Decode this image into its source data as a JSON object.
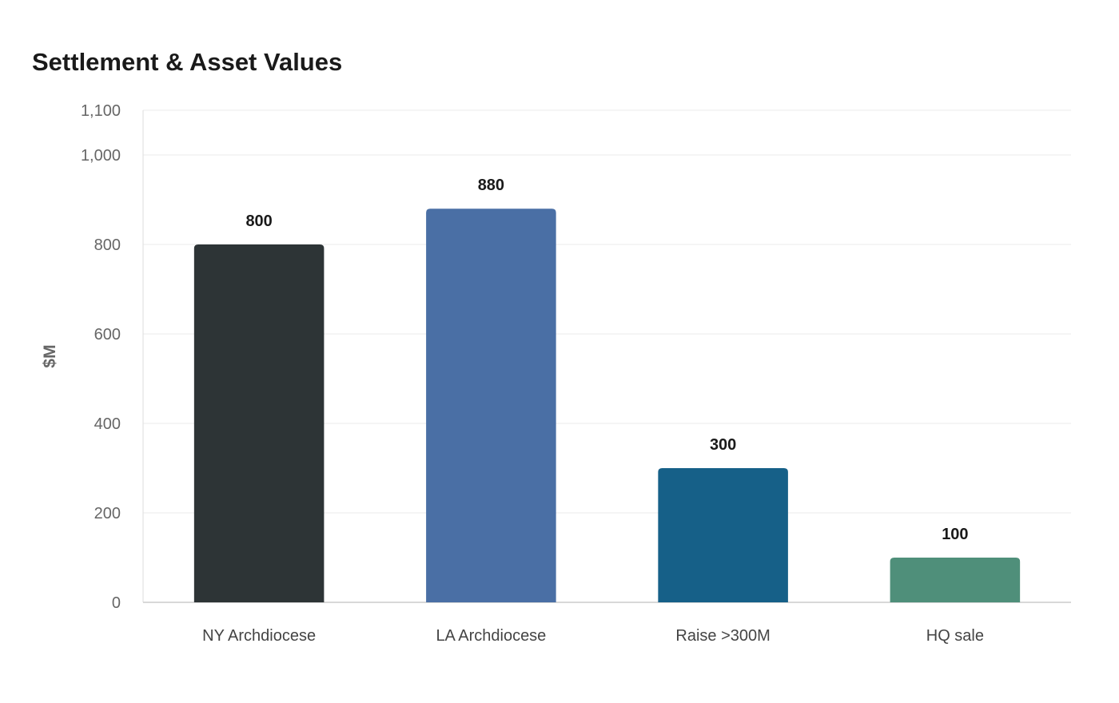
{
  "chart_data": {
    "type": "bar",
    "title": "Settlement & Asset Values",
    "xlabel": "",
    "ylabel": "$M",
    "categories": [
      "NY Archdiocese",
      "LA Archdiocese",
      "Raise >300M",
      "HQ sale"
    ],
    "values": [
      800,
      880,
      300,
      100
    ],
    "data_labels": [
      "800",
      "880",
      "300",
      "100"
    ],
    "colors": [
      "#2d3436",
      "#4a6fa5",
      "#166088",
      "#4f8f7a"
    ],
    "ylim": [
      0,
      1100
    ],
    "yticks": [
      0,
      200,
      400,
      600,
      800,
      1000,
      1100
    ],
    "ytick_labels": [
      "0",
      "200",
      "400",
      "600",
      "800",
      "1,000",
      "1,100"
    ],
    "grid": true,
    "legend": "none"
  }
}
